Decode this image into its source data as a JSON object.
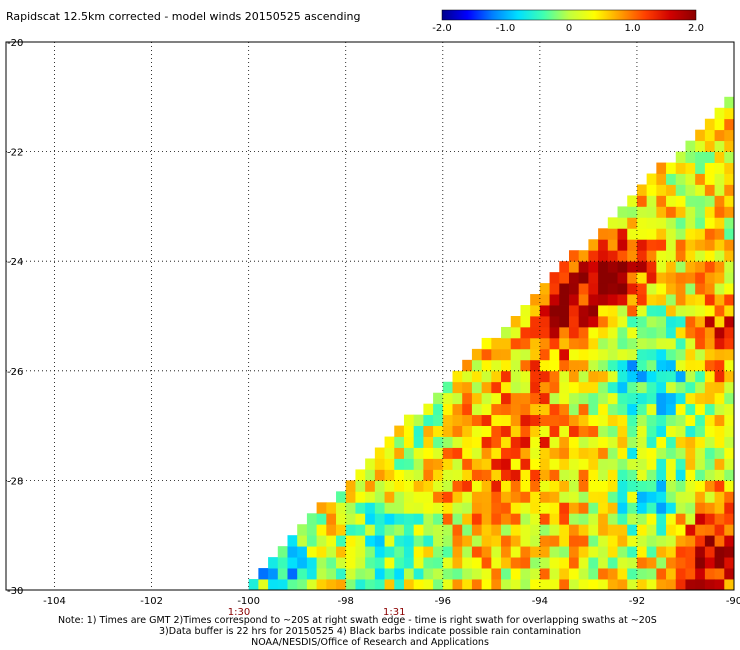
{
  "title": "Rapidscat 12.5km corrected - model winds 20150525 ascending",
  "colorbar": {
    "labels": [
      "-2.0",
      "-1.0",
      "0",
      "1.0",
      "2.0"
    ],
    "stops": [
      "#00008b",
      "#0000ff",
      "#0080ff",
      "#00e0ff",
      "#40ffb0",
      "#c0ff40",
      "#ffff00",
      "#ffa000",
      "#ff4000",
      "#d00000",
      "#8b0000"
    ]
  },
  "map": {
    "lon_ticks": [
      "-104",
      "-102",
      "-100",
      "-98",
      "-96",
      "-94",
      "-92",
      "-90"
    ],
    "lat_ticks": [
      "-20",
      "-22",
      "-24",
      "-26",
      "-28",
      "-30"
    ],
    "lon_range": [
      -105,
      -90
    ],
    "lat_range": [
      -30,
      -20
    ],
    "grid": true,
    "swath_edge": [
      [
        -100.2,
        -30
      ],
      [
        -90.05,
        -21.0
      ]
    ]
  },
  "swath_times": [
    {
      "label": "1:30",
      "lon": -100.2
    },
    {
      "label": "1:31",
      "lon": -97.0
    }
  ],
  "footer": {
    "note1": "Note: 1) Times are GMT 2)Times correspond to ~20S at right swath edge - time is right swath for overlapping swaths at ~20S",
    "note2": "3)Data buffer is 22 hrs for 20150525 4) Black barbs indicate possible rain contamination",
    "note3": "NOAA/NESDIS/Office of Research and Applications"
  }
}
